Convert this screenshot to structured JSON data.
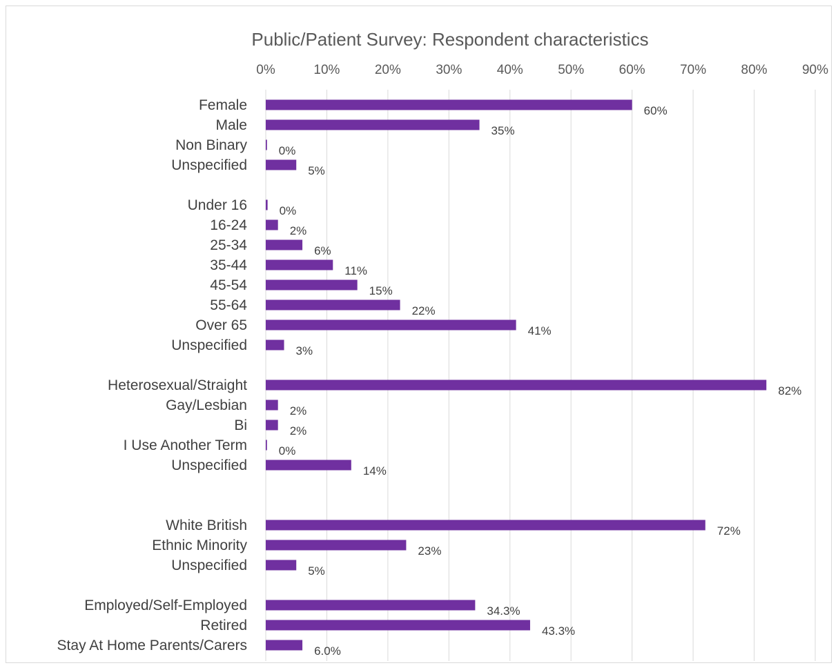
{
  "chart_data": {
    "type": "bar",
    "orientation": "horizontal",
    "title": "Public/Patient Survey: Respondent characteristics",
    "xlim": [
      0,
      90
    ],
    "x_ticks": [
      "0%",
      "10%",
      "20%",
      "30%",
      "40%",
      "50%",
      "60%",
      "70%",
      "80%",
      "90%"
    ],
    "x_axis_position": "top",
    "grid": true,
    "legend": "none",
    "bar_color": "#7030a0",
    "unit": "%",
    "categories": [
      "Female",
      "Male",
      "Non Binary",
      "Unspecified",
      "Under 16",
      "16-24",
      "25-34",
      "35-44",
      "45-54",
      "55-64",
      "Over 65",
      "Unspecified",
      "Heterosexual/Straight",
      "Gay/Lesbian",
      "Bi",
      "I Use Another Term",
      "Unspecified",
      "White British",
      "Ethnic Minority",
      "Unspecified",
      "Employed/Self-Employed",
      "Retired",
      "Stay At Home Parents/Carers"
    ],
    "values": [
      60,
      35,
      0.2,
      5,
      0.3,
      2,
      6,
      11,
      15,
      22,
      41,
      3,
      82,
      2,
      2,
      0.2,
      14,
      72,
      23,
      5,
      34.3,
      43.3,
      6.0
    ],
    "data_labels": [
      "60%",
      "35%",
      "0%",
      "5%",
      "0%",
      "2%",
      "6%",
      "11%",
      "15%",
      "22%",
      "41%",
      "3%",
      "82%",
      "2%",
      "2%",
      "0%",
      "14%",
      "72%",
      "23%",
      "5%",
      "34.3%",
      "43.3%",
      "6.0%"
    ]
  }
}
